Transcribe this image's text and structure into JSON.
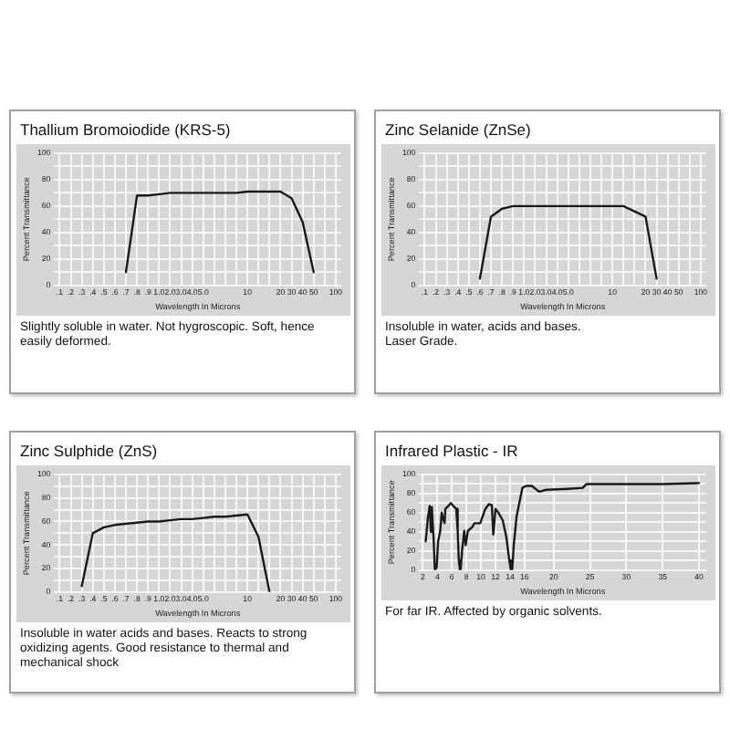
{
  "chart_data": [
    {
      "type": "line",
      "title": "Thallium Bromoiodide (KRS-5)",
      "xlabel": "Wavelength In Microns",
      "ylabel": "Percent Transmittance",
      "categories": [
        ".1",
        ".2",
        ".3",
        ".4",
        ".5",
        ".6",
        ".7",
        ".8",
        ".9",
        "1.0",
        "2.0",
        "3.0",
        "4.0",
        "5.0",
        null,
        null,
        null,
        "10",
        null,
        null,
        "20",
        "30",
        "40",
        "50",
        null,
        "100"
      ],
      "values": [
        null,
        null,
        null,
        null,
        null,
        null,
        10,
        68,
        68,
        69,
        70,
        70,
        70,
        70,
        70,
        70,
        70,
        71,
        71,
        71,
        71,
        66,
        48,
        10,
        null,
        null
      ],
      "color": "#1a1a1a",
      "ylim": [
        0,
        100
      ],
      "yticks": [
        0,
        {
          "value": 10,
          "label": null
        },
        20,
        {
          "value": 30,
          "label": null
        },
        40,
        {
          "value": 50,
          "label": null
        },
        60,
        {
          "value": 70,
          "label": null
        },
        80,
        {
          "value": 90,
          "label": null
        },
        100
      ],
      "grid": true,
      "annotations": [
        "Slightly soluble in water. Not hygroscopic. Soft, hence easily deformed."
      ]
    },
    {
      "type": "line",
      "title": "Zinc Selanide (ZnSe)",
      "xlabel": "Wavelength In Microns",
      "ylabel": "Percent Transmittance",
      "categories": [
        ".1",
        ".2",
        ".3",
        ".4",
        ".5",
        ".6",
        ".7",
        ".8",
        ".9",
        "1.0",
        "2.0",
        "3.0",
        "4.0",
        "5.0",
        null,
        null,
        null,
        "10",
        null,
        null,
        "20",
        "30",
        "40",
        "50",
        null,
        "100"
      ],
      "values": [
        null,
        null,
        null,
        null,
        null,
        5,
        52,
        58,
        60,
        60,
        60,
        60,
        60,
        60,
        60,
        60,
        60,
        60,
        60,
        56,
        52,
        5,
        null,
        null,
        null,
        null
      ],
      "color": "#1a1a1a",
      "ylim": [
        0,
        100
      ],
      "yticks": [
        0,
        {
          "value": 10,
          "label": null
        },
        20,
        {
          "value": 30,
          "label": null
        },
        40,
        {
          "value": 50,
          "label": null
        },
        60,
        {
          "value": 70,
          "label": null
        },
        80,
        {
          "value": 90,
          "label": null
        },
        100
      ],
      "grid": true,
      "annotations": [
        "Insoluble in water, acids and bases.",
        "Laser Grade."
      ]
    },
    {
      "type": "line",
      "title": "Zinc Sulphide (ZnS)",
      "xlabel": "Wavelength In Microns",
      "ylabel": "Percent Transmittance",
      "categories": [
        ".1",
        ".2",
        ".3",
        ".4",
        ".5",
        ".6",
        ".7",
        ".8",
        ".9",
        "1.0",
        "2.0",
        "3.0",
        "4.0",
        "5.0",
        null,
        null,
        null,
        "10",
        null,
        null,
        "20",
        "30",
        "40",
        "50",
        null,
        "100"
      ],
      "values": [
        null,
        null,
        5,
        50,
        55,
        57,
        58,
        59,
        60,
        60,
        61,
        62,
        62,
        63,
        64,
        64,
        65,
        66,
        47,
        0,
        null,
        null,
        null,
        null,
        null,
        null
      ],
      "color": "#1a1a1a",
      "ylim": [
        0,
        100
      ],
      "yticks": [
        0,
        {
          "value": 10,
          "label": null
        },
        20,
        {
          "value": 30,
          "label": null
        },
        40,
        {
          "value": 50,
          "label": null
        },
        60,
        {
          "value": 70,
          "label": null
        },
        80,
        {
          "value": 90,
          "label": null
        },
        100
      ],
      "grid": true,
      "annotations": [
        "Insoluble in water acids and bases. Reacts to strong oxidizing agents. Good resistance to thermal and mechanical shock"
      ]
    },
    {
      "type": "line",
      "title": "Infrared Plastic - IR",
      "xlabel": "Wavelength In Microns",
      "ylabel": "Percent Transmittance",
      "x": [
        2.4,
        2.7,
        2.95,
        3.1,
        3.2,
        3.3,
        3.5,
        3.65,
        3.75,
        3.9,
        4.1,
        4.4,
        4.6,
        4.85,
        5.0,
        5.1,
        5.5,
        5.85,
        6.2,
        6.6,
        6.8,
        6.95,
        7.1,
        7.2,
        7.4,
        7.7,
        7.9,
        8.2,
        8.8,
        9.1,
        9.9,
        10.6,
        11.1,
        11.4,
        11.5,
        11.7,
        12.0,
        12.4,
        13.0,
        13.5,
        13.9,
        14.1,
        14.3,
        14.5,
        14.9,
        15.7,
        16.2,
        17,
        18,
        19,
        22,
        24,
        24.5,
        30,
        35,
        40
      ],
      "values": [
        30,
        55,
        67,
        40,
        66,
        64,
        30,
        0,
        0,
        2,
        30,
        41,
        60,
        52,
        49,
        64,
        67,
        70,
        67,
        64,
        40,
        10,
        0,
        0,
        20,
        41,
        26,
        41,
        45,
        49,
        49,
        64,
        69,
        68,
        67,
        37,
        64,
        60,
        52,
        34,
        10,
        0,
        0,
        25,
        56,
        86,
        88,
        88,
        82,
        84,
        85,
        86,
        90,
        90,
        90,
        91
      ],
      "color": "#1a1a1a",
      "xlim": [
        1.5,
        41
      ],
      "xticks": [
        2,
        4,
        6,
        8,
        10,
        12,
        14,
        16,
        20,
        25,
        30,
        35,
        40
      ],
      "ylim": [
        0,
        100
      ],
      "yticks": [
        0,
        {
          "value": 10,
          "label": null
        },
        20,
        {
          "value": 30,
          "label": null
        },
        40,
        {
          "value": 50,
          "label": null
        },
        60,
        {
          "value": 70,
          "label": null
        },
        80,
        {
          "value": 90,
          "label": null
        },
        100
      ],
      "grid": true,
      "annotations": [
        "For far IR. Affected by organic solvents."
      ]
    }
  ]
}
